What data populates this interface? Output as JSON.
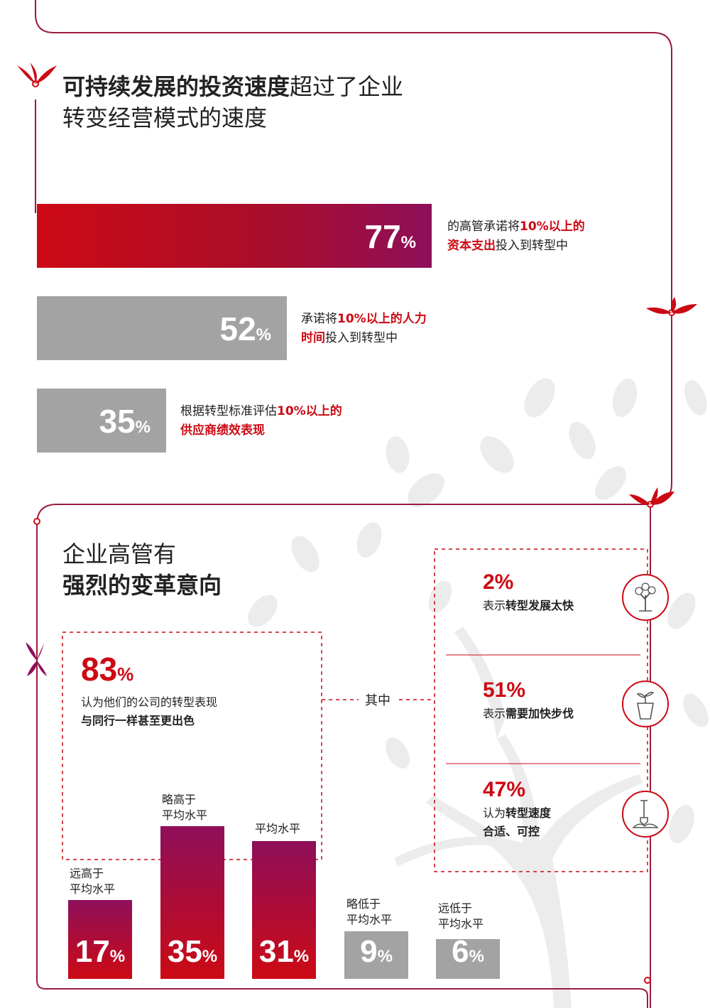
{
  "section1": {
    "title_bold": "可持续发展的投资速度",
    "title_rest_line1": "超过了企业",
    "title_line2": "转变经营模式的速度",
    "bars": [
      {
        "value": 77,
        "pct_sign": "%",
        "desc_plain_1": "的高管承诺将",
        "desc_red_1": "10%以上的",
        "desc_red_2": "资本支出",
        "desc_plain_2": "投入到转型中",
        "color": "gradient-red-purple"
      },
      {
        "value": 52,
        "pct_sign": "%",
        "desc_plain_1": "承诺将",
        "desc_red_1": "10%以上的人力",
        "desc_red_2": "时间",
        "desc_plain_2": "投入到转型中",
        "color": "#a3a3a3"
      },
      {
        "value": 35,
        "pct_sign": "%",
        "desc_plain_1": "根据转型标准评估",
        "desc_red_1": "10%以上的",
        "desc_red_2": "供应商绩效表现",
        "desc_plain_2": "",
        "color": "#a3a3a3"
      }
    ]
  },
  "section2": {
    "title_line1": "企业高管有",
    "title_line2": "强烈的变革意向",
    "main_stat": {
      "value": "83",
      "pct_sign": "%",
      "line1": "认为他们的公司的转型表现",
      "line2_red": "与同行一样甚至更出色"
    },
    "connector_label": "其中",
    "sub_stats": [
      {
        "value": "2%",
        "plain": "表示",
        "bold": "转型发展太快",
        "icon": "tree-icon"
      },
      {
        "value": "51%",
        "plain": "表示",
        "bold": "需要加快步伐",
        "icon": "potted-plant-icon"
      },
      {
        "value": "47%",
        "plain": "认为",
        "bold": "转型速度",
        "line2": "合适、可控",
        "icon": "shovel-soil-icon"
      }
    ],
    "distribution": [
      {
        "label1": "远高于",
        "label2": "平均水平",
        "value": 17,
        "pct_sign": "%"
      },
      {
        "label1": "略高于",
        "label2": "平均水平",
        "value": 35,
        "pct_sign": "%"
      },
      {
        "label1": "平均水平",
        "label2": "",
        "value": 31,
        "pct_sign": "%"
      },
      {
        "label1": "略低于",
        "label2": "平均水平",
        "value": 9,
        "pct_sign": "%"
      },
      {
        "label1": "远低于",
        "label2": "平均水平",
        "value": 6,
        "pct_sign": "%"
      }
    ]
  },
  "colors": {
    "accent_red": "#cc0a14",
    "purple": "#8e0f5a",
    "grey_bar": "#a3a3a3",
    "line": "#9b1b3d"
  }
}
